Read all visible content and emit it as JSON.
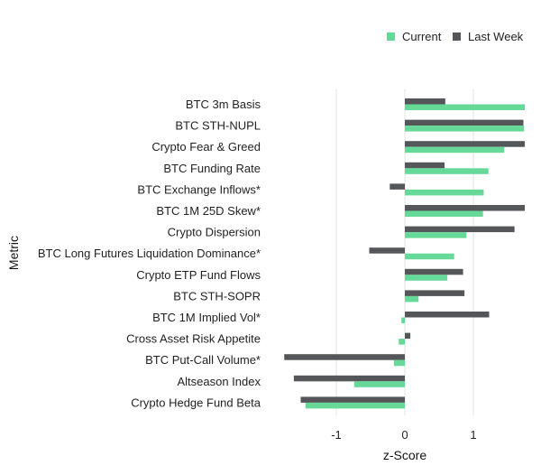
{
  "chart_data": {
    "type": "bar",
    "orientation": "horizontal",
    "xlabel": "z-Score",
    "ylabel": "Metric",
    "xlim": [
      -1.75,
      1.75
    ],
    "xticks": [
      -1,
      0,
      1
    ],
    "grid": "vertical",
    "legend_position": "top-right",
    "categories": [
      "BTC 3m Basis",
      "BTC STH-NUPL",
      "Crypto Fear & Greed",
      "BTC Funding Rate",
      "BTC Exchange Inflows*",
      "BTC 1M 25D Skew*",
      "Crypto Dispersion",
      "BTC Long Futures Liquidation Dominance*",
      "Crypto ETP Fund Flows",
      "BTC STH-SOPR",
      "BTC 1M Implied Vol*",
      "Cross Asset Risk Appetite",
      "BTC Put-Call Volume*",
      "Altseason Index",
      "Crypto Hedge Fund Beta"
    ],
    "series": [
      {
        "name": "Current",
        "color": "#66d998",
        "values": [
          1.75,
          1.74,
          1.45,
          1.22,
          1.15,
          1.14,
          0.9,
          0.72,
          0.62,
          0.2,
          -0.05,
          -0.09,
          -0.16,
          -0.74,
          -1.45
        ]
      },
      {
        "name": "Last Week",
        "color": "#545659",
        "values": [
          0.59,
          1.73,
          1.75,
          0.58,
          -0.22,
          1.75,
          1.6,
          -0.52,
          0.85,
          0.87,
          1.23,
          0.08,
          -1.76,
          -1.62,
          -1.52
        ]
      }
    ]
  }
}
